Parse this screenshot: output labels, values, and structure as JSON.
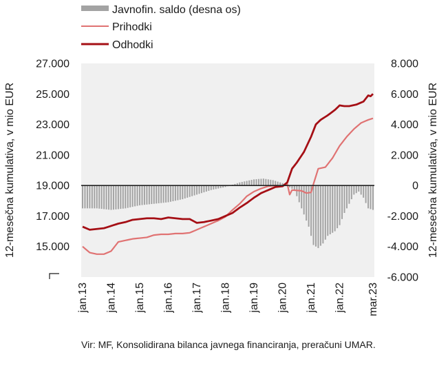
{
  "source_text": "Vir: MF, Konsolidirana bilanca javnega financiranja, preračuni UMAR.",
  "colors": {
    "saldo": "#a3a3a3",
    "prihodki": "#e07272",
    "odhodki": "#a50f15",
    "plot_bg": "#f0f0f0",
    "zero_line": "#222222"
  },
  "chart_data": {
    "type": "bar+line",
    "title": "",
    "ylabel_left": "12-mesečna kumulativa, v mio EUR",
    "ylabel_right": "12-mesečna kumulativa, v mio EUR",
    "left_axis": {
      "min": 13000,
      "max": 27000,
      "ticks": [
        "27.000",
        "25.000",
        "23.000",
        "21.000",
        "19.000",
        "17.000",
        "15.000"
      ],
      "tick_values": [
        27000,
        25000,
        23000,
        21000,
        19000,
        17000,
        15000
      ]
    },
    "right_axis": {
      "min": -6000,
      "max": 8000,
      "ticks": [
        "8.000",
        "6.000",
        "4.000",
        "2.000",
        "0",
        "-2.000",
        "-4.000",
        "-6.000"
      ],
      "tick_values": [
        8000,
        6000,
        4000,
        2000,
        0,
        -2000,
        -4000,
        -6000
      ]
    },
    "x_tick_labels": [
      "jan.13",
      "jan.14",
      "jan.15",
      "jan.16",
      "jan.17",
      "jan.18",
      "jan.19",
      "jan.20",
      "jan.21",
      "jan.22",
      "mar.23"
    ],
    "x_tick_months": [
      0,
      12,
      24,
      36,
      48,
      60,
      72,
      84,
      96,
      108,
      122
    ],
    "x_start": "jan.13",
    "x_end": "mar.23",
    "legend": [
      {
        "label": "Javnofin. saldo (desna os)",
        "kind": "bar",
        "color": "#a3a3a3"
      },
      {
        "label": "Prihodki",
        "kind": "line",
        "color": "#e07272"
      },
      {
        "label": "Odhodki",
        "kind": "line",
        "color": "#a50f15"
      }
    ],
    "series": [
      {
        "name": "Javnofin. saldo (desna os)",
        "axis": "right",
        "kind": "bar",
        "knots": [
          [
            0,
            -1500
          ],
          [
            6,
            -1500
          ],
          [
            12,
            -1600
          ],
          [
            18,
            -1500
          ],
          [
            24,
            -1300
          ],
          [
            30,
            -1200
          ],
          [
            36,
            -1100
          ],
          [
            42,
            -900
          ],
          [
            48,
            -600
          ],
          [
            54,
            -300
          ],
          [
            60,
            -100
          ],
          [
            66,
            200
          ],
          [
            72,
            400
          ],
          [
            76,
            450
          ],
          [
            80,
            350
          ],
          [
            84,
            150
          ],
          [
            89,
            -300
          ],
          [
            92,
            -1500
          ],
          [
            95,
            -2700
          ],
          [
            97,
            -3900
          ],
          [
            99,
            -4100
          ],
          [
            101,
            -3800
          ],
          [
            103,
            -3300
          ],
          [
            106,
            -3000
          ],
          [
            108,
            -2600
          ],
          [
            110,
            -1800
          ],
          [
            112,
            -1200
          ],
          [
            114,
            -600
          ],
          [
            116,
            -400
          ],
          [
            118,
            -800
          ],
          [
            120,
            -1500
          ],
          [
            122,
            -1600
          ]
        ]
      },
      {
        "name": "Prihodki",
        "axis": "left",
        "kind": "line",
        "knots": [
          [
            0,
            15000
          ],
          [
            3,
            14600
          ],
          [
            6,
            14500
          ],
          [
            9,
            14500
          ],
          [
            12,
            14700
          ],
          [
            15,
            15300
          ],
          [
            18,
            15400
          ],
          [
            21,
            15500
          ],
          [
            24,
            15550
          ],
          [
            27,
            15600
          ],
          [
            30,
            15750
          ],
          [
            33,
            15800
          ],
          [
            36,
            15800
          ],
          [
            39,
            15850
          ],
          [
            42,
            15850
          ],
          [
            45,
            15900
          ],
          [
            48,
            16100
          ],
          [
            51,
            16300
          ],
          [
            54,
            16500
          ],
          [
            57,
            16700
          ],
          [
            60,
            16950
          ],
          [
            63,
            17400
          ],
          [
            66,
            17800
          ],
          [
            69,
            18300
          ],
          [
            72,
            18600
          ],
          [
            75,
            18800
          ],
          [
            78,
            18950
          ],
          [
            81,
            19000
          ],
          [
            84,
            18950
          ],
          [
            86,
            19100
          ],
          [
            87,
            18400
          ],
          [
            88,
            18700
          ],
          [
            92,
            18650
          ],
          [
            94,
            18500
          ],
          [
            96,
            18550
          ],
          [
            97,
            19100
          ],
          [
            99,
            20100
          ],
          [
            102,
            20200
          ],
          [
            105,
            20800
          ],
          [
            108,
            21600
          ],
          [
            111,
            22200
          ],
          [
            114,
            22700
          ],
          [
            117,
            23100
          ],
          [
            120,
            23300
          ],
          [
            122,
            23400
          ]
        ]
      },
      {
        "name": "Odhodki",
        "axis": "left",
        "kind": "line",
        "knots": [
          [
            0,
            16300
          ],
          [
            3,
            16100
          ],
          [
            6,
            16150
          ],
          [
            9,
            16200
          ],
          [
            12,
            16350
          ],
          [
            15,
            16500
          ],
          [
            18,
            16600
          ],
          [
            21,
            16750
          ],
          [
            24,
            16800
          ],
          [
            27,
            16850
          ],
          [
            30,
            16850
          ],
          [
            33,
            16800
          ],
          [
            36,
            16900
          ],
          [
            39,
            16850
          ],
          [
            42,
            16800
          ],
          [
            45,
            16800
          ],
          [
            48,
            16550
          ],
          [
            51,
            16600
          ],
          [
            54,
            16700
          ],
          [
            57,
            16800
          ],
          [
            60,
            17000
          ],
          [
            63,
            17200
          ],
          [
            66,
            17550
          ],
          [
            69,
            17850
          ],
          [
            72,
            18200
          ],
          [
            75,
            18500
          ],
          [
            78,
            18700
          ],
          [
            81,
            18900
          ],
          [
            84,
            18950
          ],
          [
            86,
            19200
          ],
          [
            88,
            20100
          ],
          [
            90,
            20500
          ],
          [
            93,
            21200
          ],
          [
            96,
            22200
          ],
          [
            98,
            23000
          ],
          [
            100,
            23300
          ],
          [
            103,
            23600
          ],
          [
            106,
            23950
          ],
          [
            108,
            24250
          ],
          [
            110,
            24200
          ],
          [
            112,
            24200
          ],
          [
            115,
            24300
          ],
          [
            118,
            24500
          ],
          [
            120,
            24900
          ],
          [
            121,
            24850
          ],
          [
            122,
            25000
          ]
        ]
      }
    ]
  }
}
